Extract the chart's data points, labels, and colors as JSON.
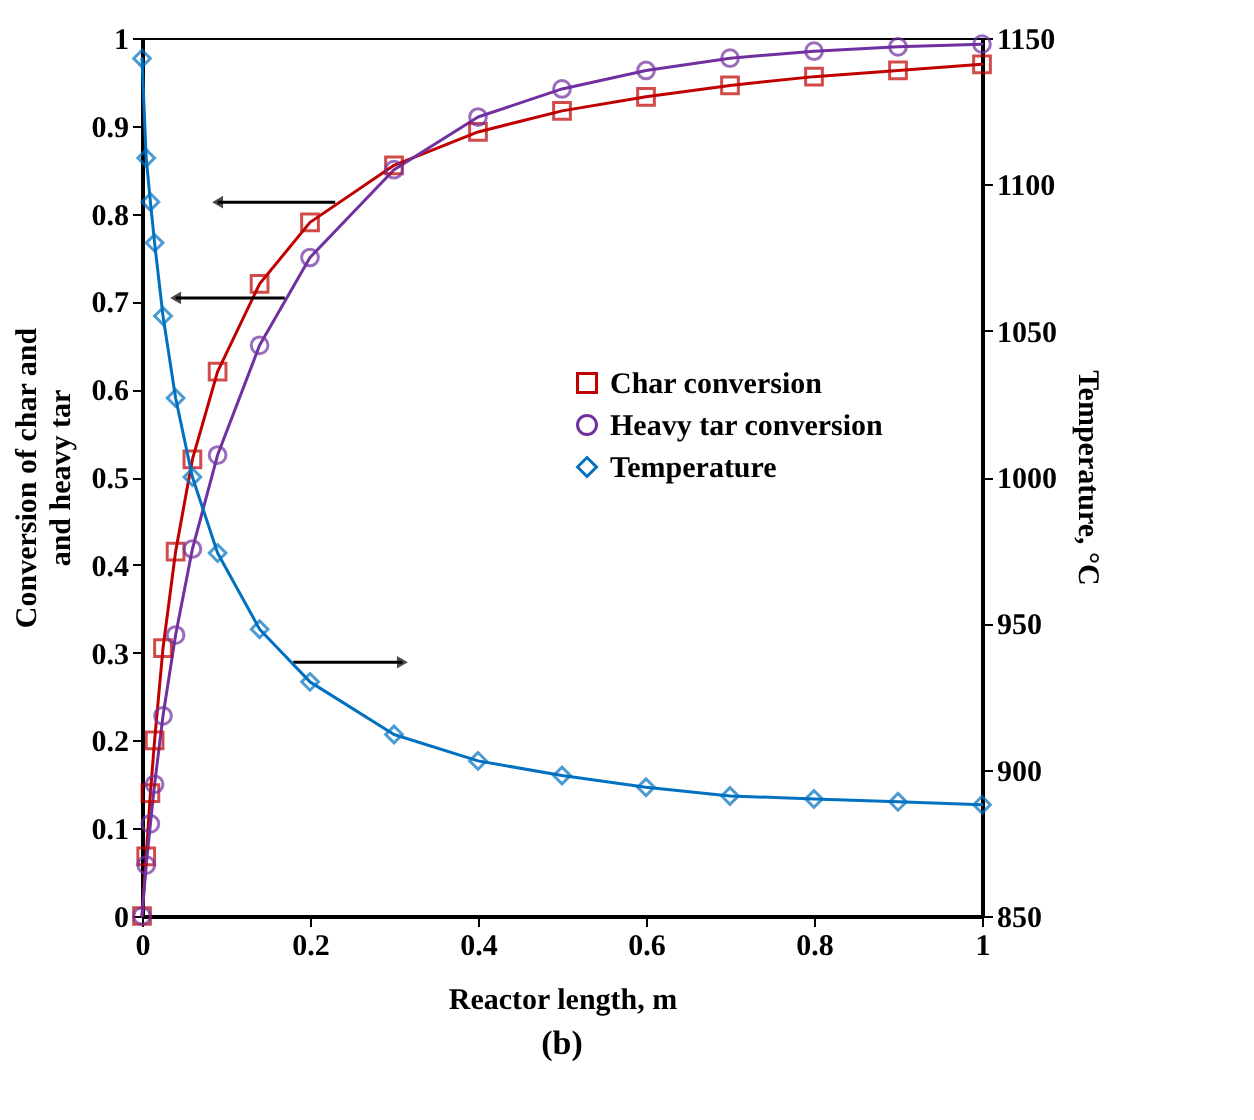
{
  "chart_data": {
    "type": "line",
    "xlabel": "Reactor length, m",
    "ylabel": "Conversion of char and\nand heavy tar",
    "y2label": "Temperature, °C",
    "annotations": [
      "(b)"
    ],
    "xlim": [
      0,
      1
    ],
    "xticks": [
      0,
      0.2,
      0.4,
      0.6,
      0.8,
      1
    ],
    "ylim": [
      0,
      1
    ],
    "yticks": [
      0,
      0.1,
      0.2,
      0.3,
      0.4,
      0.5,
      0.6,
      0.7,
      0.8,
      0.9,
      1
    ],
    "y2lim": [
      850,
      1150
    ],
    "y2ticks": [
      850,
      900,
      950,
      1000,
      1050,
      1100,
      1150
    ],
    "legend": "right",
    "grid": false,
    "line_style": "solid",
    "series": [
      {
        "name": "Char conversion",
        "color": "#c00000",
        "marker": "square",
        "x": [
          0,
          0.005,
          0.01,
          0.015,
          0.025,
          0.04,
          0.06,
          0.09,
          0.14,
          0.2,
          0.3,
          0.4,
          0.5,
          0.6,
          0.7,
          0.8,
          0.9,
          1
        ],
        "values": [
          0,
          0.068,
          0.14,
          0.2,
          0.305,
          0.415,
          0.52,
          0.62,
          0.72,
          0.79,
          0.855,
          0.893,
          0.917,
          0.933,
          0.946,
          0.956,
          0.963,
          0.97
        ]
      },
      {
        "name": "Heavy tar conversion",
        "color": "#7030a0",
        "marker": "circle",
        "x": [
          0,
          0.005,
          0.01,
          0.015,
          0.025,
          0.04,
          0.06,
          0.09,
          0.14,
          0.2,
          0.3,
          0.4,
          0.5,
          0.6,
          0.7,
          0.8,
          0.9,
          1
        ],
        "values": [
          0,
          0.058,
          0.105,
          0.15,
          0.228,
          0.32,
          0.418,
          0.525,
          0.65,
          0.75,
          0.85,
          0.91,
          0.942,
          0.963,
          0.977,
          0.985,
          0.99,
          0.993
        ]
      },
      {
        "name": "Temperature",
        "color": "#0070c0",
        "marker": "diamond",
        "axis": "y2",
        "x": [
          0,
          0.005,
          0.01,
          0.015,
          0.025,
          0.04,
          0.06,
          0.09,
          0.14,
          0.2,
          0.3,
          0.4,
          0.5,
          0.6,
          0.7,
          0.8,
          0.9,
          1
        ],
        "values": [
          1143,
          1109,
          1094,
          1080,
          1055,
          1027,
          1000,
          974,
          948,
          930,
          912,
          903,
          898,
          894,
          891,
          890,
          889,
          888
        ]
      }
    ]
  }
}
